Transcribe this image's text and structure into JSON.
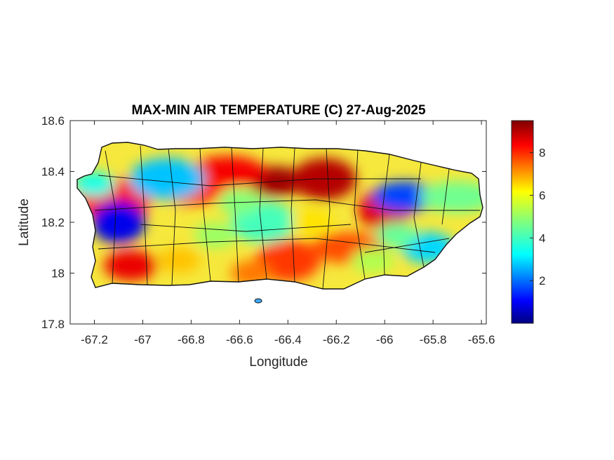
{
  "map": {
    "title": "MAX-MIN AIR TEMPERATURE (C) 27-Aug-2025",
    "xlabel": "Longitude",
    "ylabel": "Latitude",
    "xlim": [
      -67.3,
      -65.58
    ],
    "ylim": [
      17.8,
      18.6
    ],
    "x_ticks": [
      -67.2,
      -67,
      -66.8,
      -66.6,
      -66.4,
      -66.2,
      -66,
      -65.8,
      -65.6
    ],
    "x_tick_labels": [
      "-67.2",
      "-67",
      "-66.8",
      "-66.6",
      "-66.4",
      "-66.2",
      "-66",
      "-65.8",
      "-65.6"
    ],
    "y_ticks": [
      18.6,
      18.4,
      18.2,
      18,
      17.8
    ],
    "y_tick_labels": [
      "18.6",
      "18.4",
      "18.2",
      "18",
      "17.8"
    ],
    "colorbar": {
      "colormap": "jet",
      "range": [
        0,
        9.5
      ],
      "ticks": [
        8,
        6,
        4,
        2
      ],
      "tick_labels": [
        "8",
        "6",
        "4",
        "2"
      ]
    },
    "hotspots": [
      {
        "lon": -66.45,
        "lat": 18.36,
        "value": 9.2
      },
      {
        "lon": -66.25,
        "lat": 18.37,
        "value": 9.0
      },
      {
        "lon": -66.65,
        "lat": 18.4,
        "value": 8.4
      },
      {
        "lon": -66.0,
        "lat": 18.25,
        "value": 8.6
      },
      {
        "lon": -66.8,
        "lat": 18.33,
        "value": 8.0
      },
      {
        "lon": -67.12,
        "lat": 18.29,
        "value": 8.3
      },
      {
        "lon": -67.05,
        "lat": 18.03,
        "value": 8.5
      },
      {
        "lon": -66.4,
        "lat": 18.05,
        "value": 7.8
      },
      {
        "lon": -66.15,
        "lat": 18.1,
        "value": 7.6
      },
      {
        "lon": -67.1,
        "lat": 18.2,
        "value": 1.0
      },
      {
        "lon": -65.92,
        "lat": 18.3,
        "value": 1.8
      },
      {
        "lon": -66.9,
        "lat": 18.37,
        "value": 3.0
      },
      {
        "lon": -65.82,
        "lat": 18.1,
        "value": 3.2
      },
      {
        "lon": -66.5,
        "lat": 18.2,
        "value": 4.2
      },
      {
        "lon": -65.7,
        "lat": 18.3,
        "value": 4.6
      }
    ]
  }
}
